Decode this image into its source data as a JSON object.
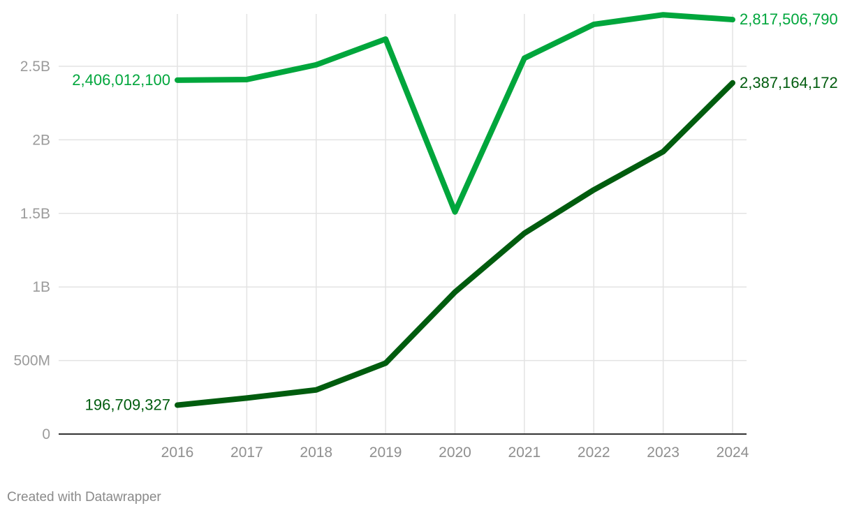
{
  "chart_data": {
    "type": "line",
    "x": [
      "2016",
      "2017",
      "2018",
      "2019",
      "2020",
      "2021",
      "2022",
      "2023",
      "2024"
    ],
    "series": [
      {
        "color": "#00a63c",
        "values": [
          2406012100,
          2410000000,
          2510000000,
          2685000000,
          1510000000,
          2555000000,
          2785000000,
          2850000000,
          2817506790
        ],
        "labels": {
          "start": "2,406,012,100",
          "end": "2,817,506,790"
        }
      },
      {
        "color": "#005c0e",
        "values": [
          196709327,
          245000000,
          300000000,
          482000000,
          965000000,
          1365000000,
          1660000000,
          1920000000,
          2387164172
        ],
        "labels": {
          "start": "196,709,327",
          "end": "2,387,164,172"
        }
      }
    ],
    "y_ticks": [
      {
        "value": 0,
        "label": "0"
      },
      {
        "value": 500000000,
        "label": "500M"
      },
      {
        "value": 1000000000,
        "label": "1B"
      },
      {
        "value": 1500000000,
        "label": "1.5B"
      },
      {
        "value": 2000000000,
        "label": "2B"
      },
      {
        "value": 2500000000,
        "label": "2.5B"
      }
    ],
    "ylim": [
      0,
      2850000000
    ],
    "grid": true,
    "title": "",
    "xlabel": "",
    "ylabel": ""
  },
  "credit": "Created with Datawrapper"
}
